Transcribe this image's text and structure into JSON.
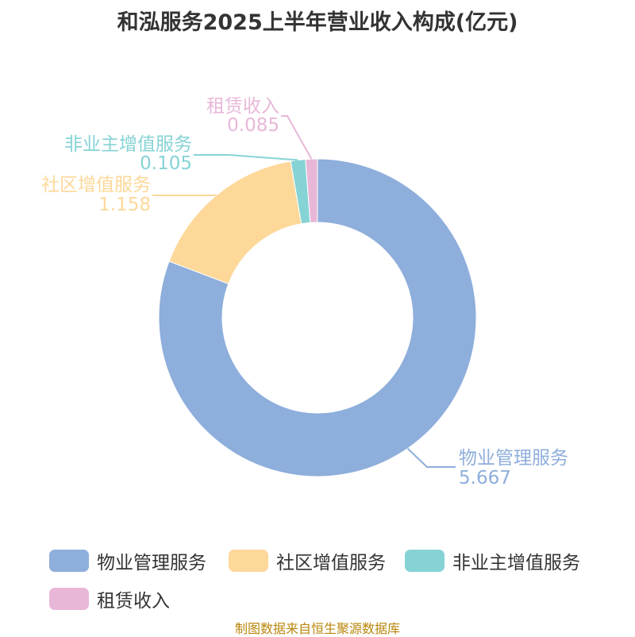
{
  "chart_data": {
    "type": "pie",
    "variant": "donut",
    "title": "和泓服务2025上半年营业收入构成(亿元)",
    "slices": [
      {
        "name": "物业管理服务",
        "value": 5.667,
        "value_label": "5.667",
        "color": "#8eaedb"
      },
      {
        "name": "社区增值服务",
        "value": 1.158,
        "value_label": "1.158",
        "color": "#fdd899"
      },
      {
        "name": "非业主增值服务",
        "value": 0.105,
        "value_label": "0.105",
        "color": "#86d3d5"
      },
      {
        "name": "租赁收入",
        "value": 0.085,
        "value_label": "0.085",
        "color": "#e8b7d8"
      }
    ],
    "legend_position": "bottom"
  },
  "footer": {
    "source": "制图数据来自恒生聚源数据库"
  }
}
